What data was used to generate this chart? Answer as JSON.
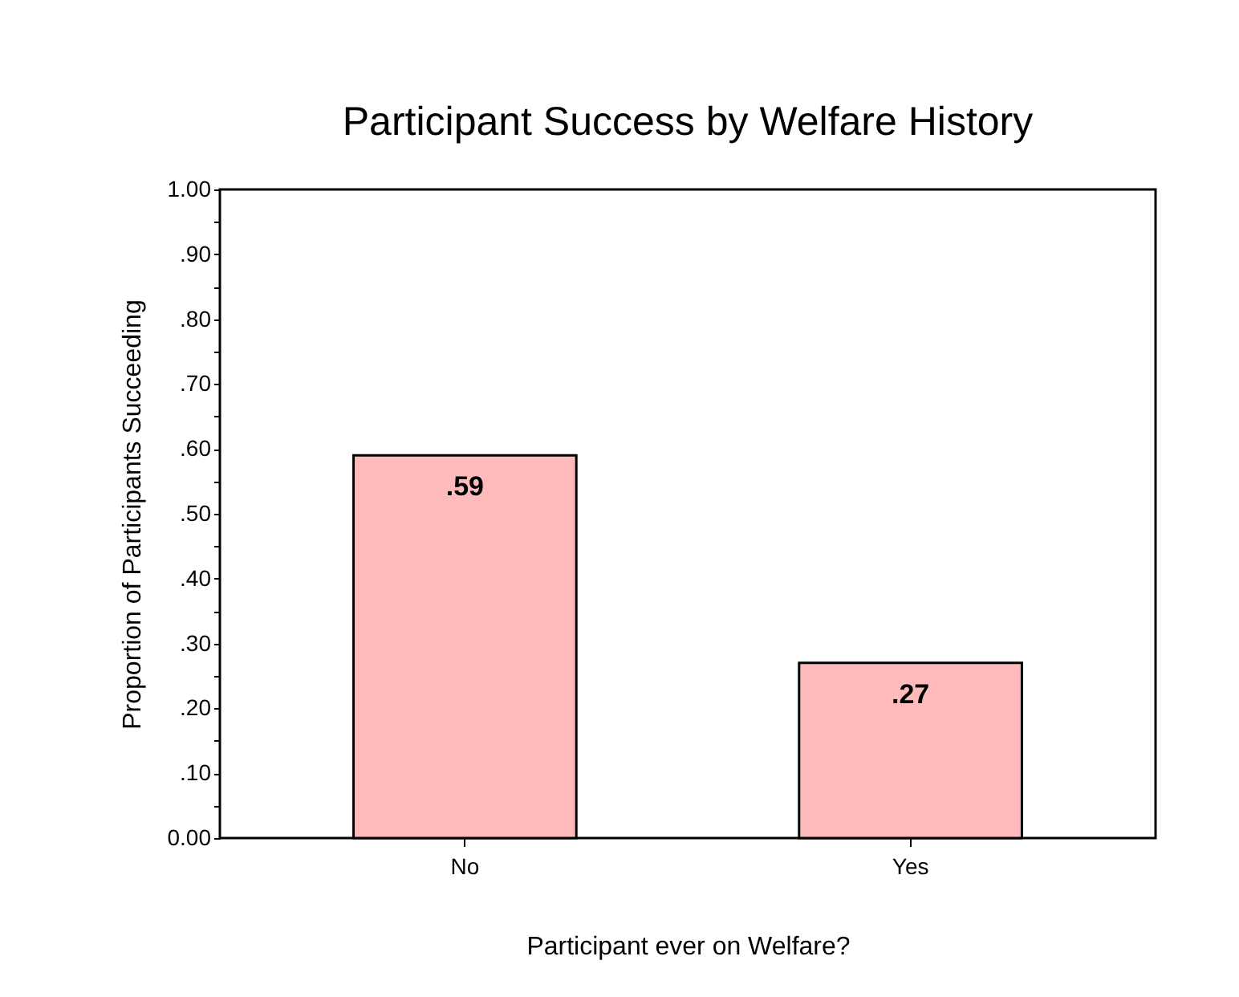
{
  "chart_data": {
    "type": "bar",
    "title": "Participant Success by Welfare History",
    "xlabel": "Participant ever on Welfare?",
    "ylabel": "Proportion of Participants Succeeding",
    "categories": [
      "No",
      "Yes"
    ],
    "values": [
      0.59,
      0.27
    ],
    "value_labels": [
      ".59",
      ".27"
    ],
    "color": "#ffbbbb",
    "ylim": [
      0,
      1
    ],
    "yticks": [
      {
        "value": 0,
        "label": "0.00"
      },
      {
        "value": 0.05,
        "label": null
      },
      {
        "value": 0.1,
        "label": ".10"
      },
      {
        "value": 0.15,
        "label": null
      },
      {
        "value": 0.2,
        "label": ".20"
      },
      {
        "value": 0.25,
        "label": null
      },
      {
        "value": 0.3,
        "label": ".30"
      },
      {
        "value": 0.35,
        "label": null
      },
      {
        "value": 0.4,
        "label": ".40"
      },
      {
        "value": 0.45,
        "label": null
      },
      {
        "value": 0.5,
        "label": ".50"
      },
      {
        "value": 0.55,
        "label": null
      },
      {
        "value": 0.6,
        "label": ".60"
      },
      {
        "value": 0.65,
        "label": null
      },
      {
        "value": 0.7,
        "label": ".70"
      },
      {
        "value": 0.75,
        "label": null
      },
      {
        "value": 0.8,
        "label": ".80"
      },
      {
        "value": 0.85,
        "label": null
      },
      {
        "value": 0.9,
        "label": ".90"
      },
      {
        "value": 0.95,
        "label": null
      },
      {
        "value": 1,
        "label": "1.00"
      }
    ],
    "grid": false
  }
}
